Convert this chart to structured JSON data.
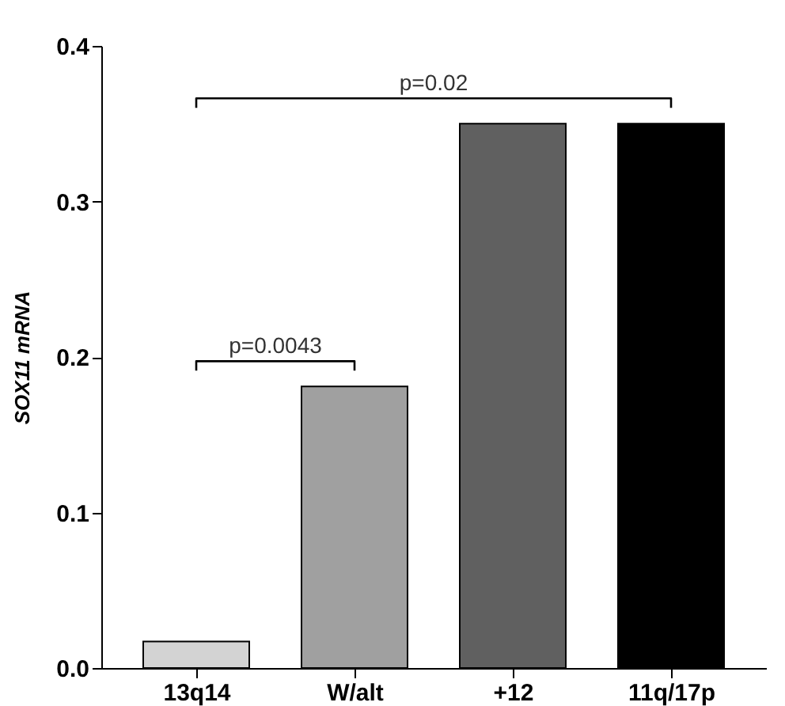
{
  "chart_data": {
    "type": "bar",
    "ylabel": "SOX11 mRNA",
    "categories": [
      "13q14",
      "W/alt",
      "+12",
      "11q/17p"
    ],
    "values": [
      0.017,
      0.181,
      0.35,
      0.35
    ],
    "colors": [
      "#d3d3d3",
      "#a0a0a0",
      "#606060",
      "#000000"
    ],
    "ylim": [
      0,
      0.4
    ],
    "yticks": [
      {
        "value": 0,
        "label": "0.0"
      },
      {
        "value": 0.1,
        "label": "0.1"
      },
      {
        "value": 0.2,
        "label": "0.2"
      },
      {
        "value": 0.3,
        "label": "0.3"
      },
      {
        "value": 0.4,
        "label": "0.4"
      }
    ],
    "grid": false,
    "annotations": [
      "p=0.0043",
      "p=0.02"
    ]
  }
}
